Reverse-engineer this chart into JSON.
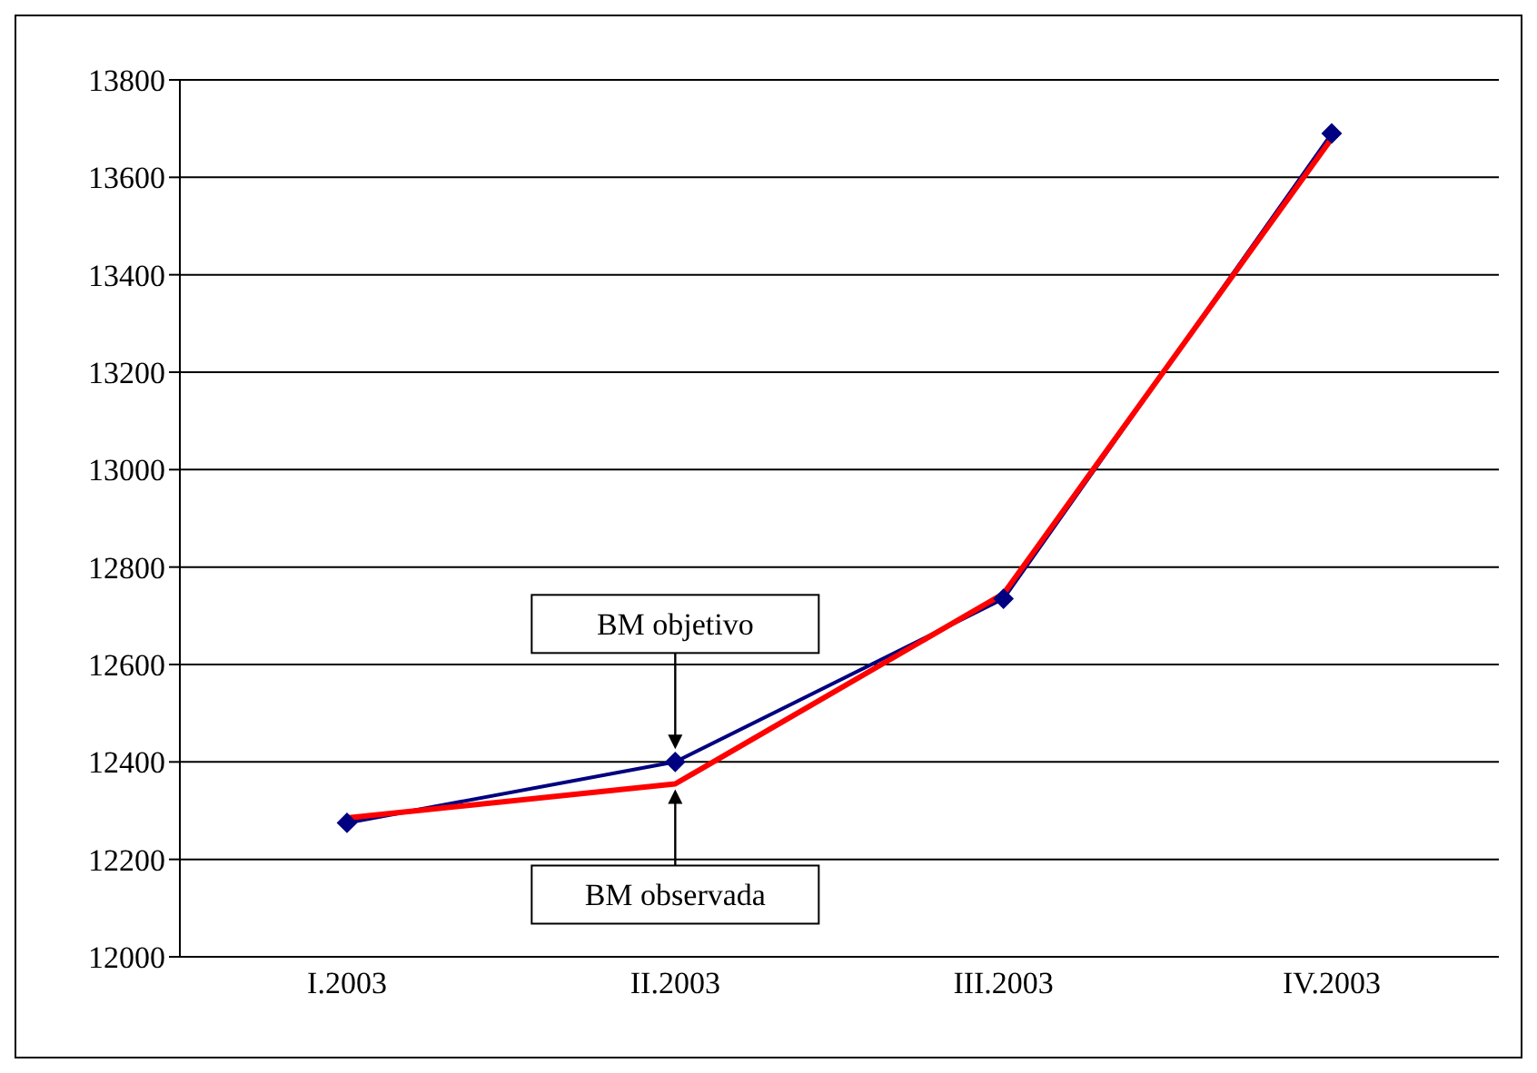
{
  "chart_data": {
    "type": "line",
    "categories": [
      "I.2003",
      "II.2003",
      "III.2003",
      "IV.2003"
    ],
    "series": [
      {
        "name": "BM objetivo",
        "color": "#000080",
        "marker": "diamond",
        "values": [
          12275,
          12400,
          12735,
          13690
        ]
      },
      {
        "name": "BM observada",
        "color": "#ff0000",
        "marker": "none",
        "values": [
          12285,
          12355,
          12745,
          13680
        ]
      }
    ],
    "ylim": [
      12000,
      13800
    ],
    "yticks": [
      12000,
      12200,
      12400,
      12600,
      12800,
      13000,
      13200,
      13400,
      13600,
      13800
    ],
    "grid": "y",
    "legend": false
  }
}
